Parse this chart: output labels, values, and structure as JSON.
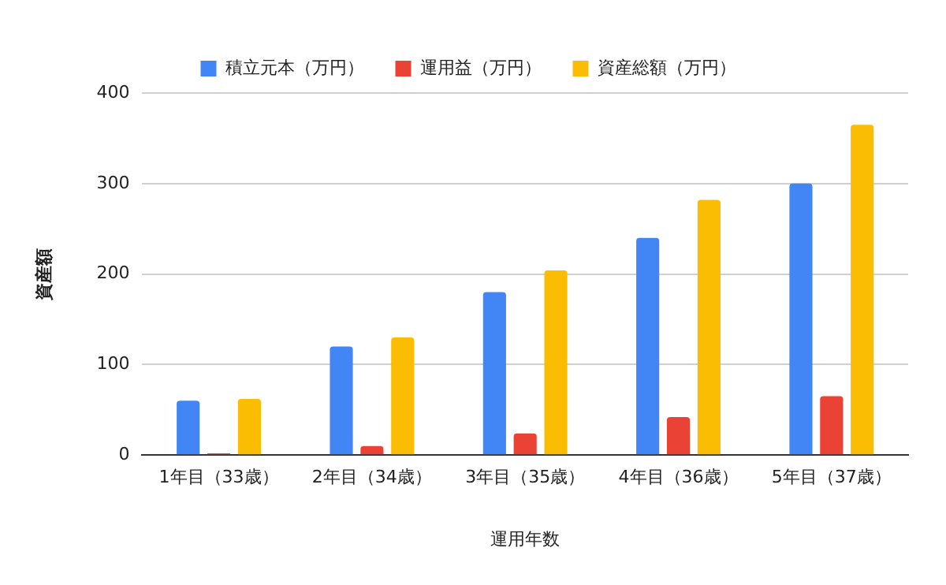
{
  "chart_data": {
    "type": "bar",
    "xlabel": "運用年数",
    "ylabel": "資産額",
    "categories": [
      "1年目（33歳）",
      "2年目（34歳）",
      "3年目（35歳）",
      "4年目（36歳）",
      "5年目（37歳）"
    ],
    "series": [
      {
        "name": "積立元本（万円）",
        "color": "#4285f4",
        "values": [
          60,
          120,
          180,
          240,
          300
        ]
      },
      {
        "name": "運用益（万円）",
        "color": "#ea4335",
        "values": [
          2,
          10,
          24,
          42,
          65
        ]
      },
      {
        "name": "資産総額（万円）",
        "color": "#fbbc04",
        "values": [
          62,
          130,
          204,
          282,
          365
        ]
      }
    ],
    "ylim": [
      0,
      400
    ],
    "yticks": [
      0,
      100,
      200,
      300,
      400
    ],
    "grid": "y",
    "legend": "top"
  }
}
